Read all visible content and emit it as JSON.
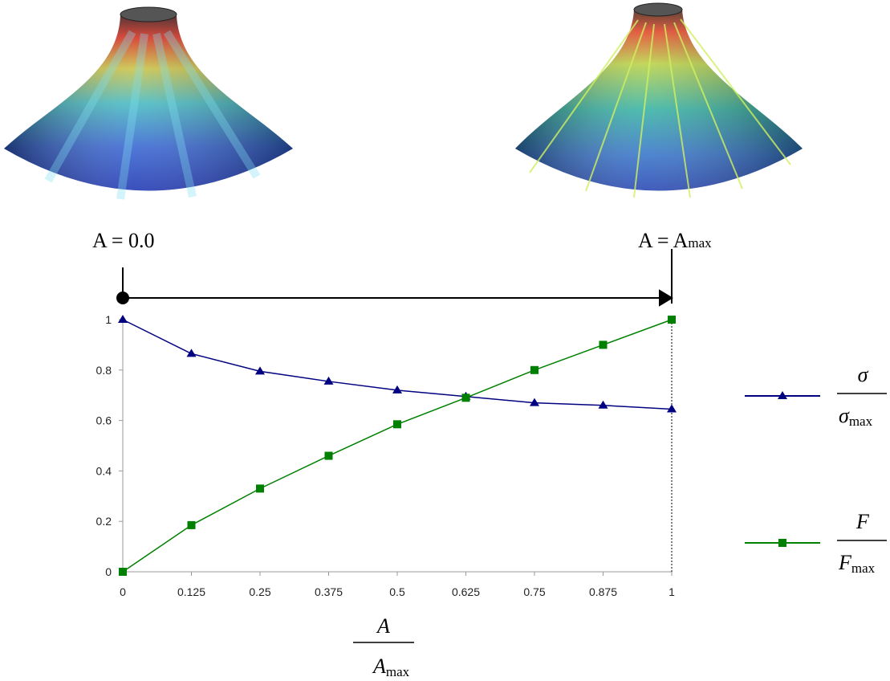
{
  "chart_data": {
    "type": "line",
    "x": [
      0,
      0.125,
      0.25,
      0.375,
      0.5,
      0.625,
      0.75,
      0.875,
      1
    ],
    "series": [
      {
        "name": {
          "numerator": "σ",
          "denominator": "σ",
          "denominator_subscript": "max"
        },
        "color": "#000080",
        "marker": "triangle",
        "values": [
          1,
          0.865,
          0.795,
          0.755,
          0.72,
          0.695,
          0.67,
          0.66,
          0.645
        ]
      },
      {
        "name": {
          "numerator": "F",
          "denominator": "F",
          "denominator_subscript": "max"
        },
        "color": "#008000",
        "marker": "square",
        "values": [
          0,
          0.185,
          0.33,
          0.46,
          0.585,
          0.69,
          0.8,
          0.9,
          1
        ]
      }
    ],
    "xlabel": {
      "numerator": "A",
      "denominator": "A",
      "denominator_subscript": "max"
    },
    "xlim": [
      0,
      1
    ],
    "xticks": [
      0,
      0.125,
      0.25,
      0.375,
      0.5,
      0.625,
      0.75,
      0.875,
      1
    ],
    "ylim": [
      0,
      1
    ],
    "yticks": [
      0,
      0.2,
      0.4,
      0.6,
      0.8,
      1
    ],
    "grid": false,
    "annotations": [
      {
        "text": "A = 0.0"
      },
      {
        "text": "A = A",
        "subscript": "max"
      }
    ]
  }
}
